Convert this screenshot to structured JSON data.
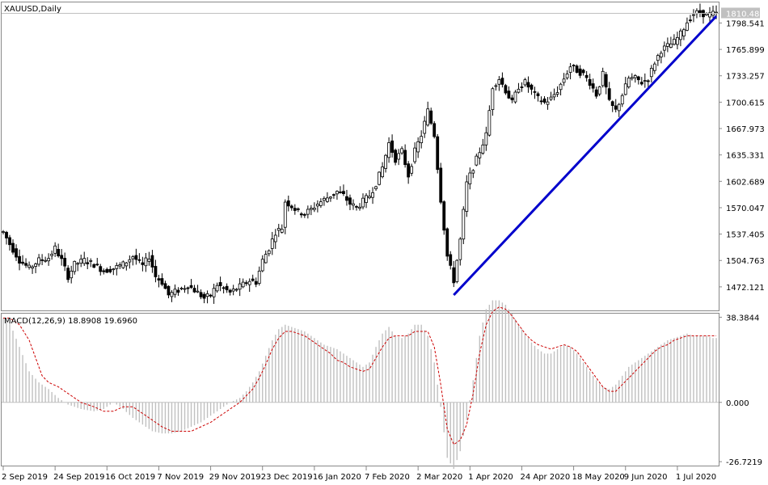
{
  "chart_data": {
    "type": "candlestick",
    "title": "XAUUSD,Daily",
    "price_panel": {
      "ylim": [
        1443.0,
        1824.0
      ],
      "y_ticks": [
        "1798.541",
        "1765.899",
        "1733.257",
        "1700.615",
        "1667.973",
        "1635.331",
        "1602.689",
        "1570.047",
        "1537.405",
        "1504.763",
        "1472.121"
      ],
      "current_price": "1810.480",
      "grid": false
    },
    "macd_panel": {
      "title": "MACD(12,26,9) 18.8908 19.6960",
      "ylim": [
        -28.5,
        40.0
      ],
      "y_ticks": [
        "38.3844",
        "0.000",
        "-26.7219"
      ],
      "zero_line": true
    },
    "x_tick_labels": [
      "2 Sep 2019",
      "24 Sep 2019",
      "16 Oct 2019",
      "7 Nov 2019",
      "29 Nov 2019",
      "23 Dec 2019",
      "16 Jan 2020",
      "7 Feb 2020",
      "2 Mar 2020",
      "1 Apr 2020",
      "24 Apr 2020",
      "18 May 2020",
      "9 Jun 2020",
      "1 Jul 2020"
    ],
    "x_tick_bar_index": [
      0,
      16,
      32,
      48,
      64,
      80,
      96,
      112,
      128,
      144,
      160,
      176,
      192,
      208
    ],
    "anchors": [
      [
        0,
        1540
      ],
      [
        2,
        1525
      ],
      [
        5,
        1505
      ],
      [
        8,
        1495
      ],
      [
        11,
        1505
      ],
      [
        14,
        1508
      ],
      [
        16,
        1520
      ],
      [
        18,
        1505
      ],
      [
        20,
        1485
      ],
      [
        22,
        1500
      ],
      [
        25,
        1505
      ],
      [
        28,
        1500
      ],
      [
        31,
        1492
      ],
      [
        34,
        1495
      ],
      [
        37,
        1500
      ],
      [
        40,
        1510
      ],
      [
        43,
        1498
      ],
      [
        45,
        1510
      ],
      [
        47,
        1485
      ],
      [
        49,
        1478
      ],
      [
        51,
        1462
      ],
      [
        54,
        1468
      ],
      [
        57,
        1474
      ],
      [
        60,
        1465
      ],
      [
        62,
        1458
      ],
      [
        64,
        1462
      ],
      [
        66,
        1475
      ],
      [
        68,
        1470
      ],
      [
        70,
        1465
      ],
      [
        72,
        1470
      ],
      [
        74,
        1475
      ],
      [
        76,
        1480
      ],
      [
        78,
        1478
      ],
      [
        80,
        1505
      ],
      [
        82,
        1520
      ],
      [
        84,
        1540
      ],
      [
        86,
        1545
      ],
      [
        87,
        1578
      ],
      [
        89,
        1572
      ],
      [
        91,
        1565
      ],
      [
        93,
        1563
      ],
      [
        95,
        1568
      ],
      [
        97,
        1575
      ],
      [
        99,
        1580
      ],
      [
        101,
        1585
      ],
      [
        103,
        1590
      ],
      [
        105,
        1585
      ],
      [
        107,
        1575
      ],
      [
        109,
        1570
      ],
      [
        111,
        1578
      ],
      [
        113,
        1585
      ],
      [
        115,
        1600
      ],
      [
        117,
        1620
      ],
      [
        119,
        1650
      ],
      [
        121,
        1630
      ],
      [
        123,
        1640
      ],
      [
        125,
        1610
      ],
      [
        127,
        1640
      ],
      [
        129,
        1660
      ],
      [
        131,
        1690
      ],
      [
        133,
        1660
      ],
      [
        135,
        1580
      ],
      [
        137,
        1510
      ],
      [
        139,
        1480
      ],
      [
        141,
        1530
      ],
      [
        143,
        1600
      ],
      [
        145,
        1620
      ],
      [
        147,
        1640
      ],
      [
        149,
        1660
      ],
      [
        151,
        1720
      ],
      [
        153,
        1730
      ],
      [
        155,
        1715
      ],
      [
        157,
        1700
      ],
      [
        159,
        1720
      ],
      [
        161,
        1725
      ],
      [
        163,
        1715
      ],
      [
        165,
        1705
      ],
      [
        167,
        1700
      ],
      [
        169,
        1705
      ],
      [
        171,
        1715
      ],
      [
        173,
        1730
      ],
      [
        175,
        1745
      ],
      [
        177,
        1740
      ],
      [
        179,
        1735
      ],
      [
        181,
        1725
      ],
      [
        183,
        1710
      ],
      [
        185,
        1735
      ],
      [
        187,
        1700
      ],
      [
        189,
        1690
      ],
      [
        191,
        1710
      ],
      [
        193,
        1730
      ],
      [
        195,
        1730
      ],
      [
        197,
        1725
      ],
      [
        199,
        1730
      ],
      [
        201,
        1750
      ],
      [
        203,
        1765
      ],
      [
        205,
        1770
      ],
      [
        207,
        1775
      ],
      [
        209,
        1785
      ],
      [
        211,
        1800
      ],
      [
        213,
        1810
      ],
      [
        215,
        1812
      ],
      [
        217,
        1808
      ],
      [
        219,
        1810
      ],
      [
        220,
        1810
      ]
    ],
    "macd_anchors": [
      [
        0,
        38
      ],
      [
        2,
        36
      ],
      [
        5,
        25
      ],
      [
        8,
        14
      ],
      [
        11,
        9
      ],
      [
        14,
        6
      ],
      [
        17,
        2
      ],
      [
        20,
        -1
      ],
      [
        24,
        -3
      ],
      [
        28,
        -4
      ],
      [
        31,
        -3
      ],
      [
        34,
        0
      ],
      [
        37,
        -3
      ],
      [
        40,
        -7
      ],
      [
        43,
        -10
      ],
      [
        46,
        -13
      ],
      [
        49,
        -14
      ],
      [
        52,
        -14
      ],
      [
        55,
        -13
      ],
      [
        58,
        -11
      ],
      [
        61,
        -9
      ],
      [
        64,
        -6
      ],
      [
        67,
        -3
      ],
      [
        70,
        0
      ],
      [
        73,
        2
      ],
      [
        75,
        5
      ],
      [
        77,
        9
      ],
      [
        79,
        14
      ],
      [
        81,
        21
      ],
      [
        83,
        28
      ],
      [
        85,
        33
      ],
      [
        87,
        35
      ],
      [
        89,
        34
      ],
      [
        91,
        33
      ],
      [
        93,
        32
      ],
      [
        95,
        30
      ],
      [
        97,
        28
      ],
      [
        99,
        26
      ],
      [
        101,
        25
      ],
      [
        103,
        24
      ],
      [
        105,
        22
      ],
      [
        107,
        20
      ],
      [
        109,
        18
      ],
      [
        111,
        16
      ],
      [
        113,
        18
      ],
      [
        115,
        25
      ],
      [
        117,
        31
      ],
      [
        119,
        34
      ],
      [
        121,
        30
      ],
      [
        123,
        29
      ],
      [
        125,
        31
      ],
      [
        127,
        35
      ],
      [
        129,
        35
      ],
      [
        131,
        30
      ],
      [
        133,
        18
      ],
      [
        135,
        -2
      ],
      [
        137,
        -25
      ],
      [
        139,
        -30
      ],
      [
        141,
        -22
      ],
      [
        143,
        -8
      ],
      [
        145,
        10
      ],
      [
        147,
        30
      ],
      [
        149,
        42
      ],
      [
        151,
        46
      ],
      [
        153,
        46
      ],
      [
        155,
        44
      ],
      [
        157,
        40
      ],
      [
        159,
        35
      ],
      [
        161,
        31
      ],
      [
        163,
        27
      ],
      [
        165,
        24
      ],
      [
        167,
        22
      ],
      [
        169,
        22
      ],
      [
        171,
        24
      ],
      [
        173,
        26
      ],
      [
        175,
        25
      ],
      [
        177,
        22
      ],
      [
        179,
        18
      ],
      [
        181,
        14
      ],
      [
        183,
        10
      ],
      [
        185,
        7
      ],
      [
        187,
        6
      ],
      [
        189,
        8
      ],
      [
        191,
        12
      ],
      [
        193,
        16
      ],
      [
        195,
        18
      ],
      [
        197,
        20
      ],
      [
        199,
        22
      ],
      [
        201,
        24
      ],
      [
        203,
        26
      ],
      [
        205,
        28
      ],
      [
        207,
        29
      ],
      [
        209,
        30
      ],
      [
        211,
        31
      ],
      [
        213,
        30
      ],
      [
        215,
        30
      ],
      [
        217,
        30
      ],
      [
        219,
        29
      ],
      [
        220,
        29
      ]
    ],
    "signal_anchors": [
      [
        0,
        38
      ],
      [
        2,
        38
      ],
      [
        5,
        35
      ],
      [
        8,
        28
      ],
      [
        10,
        20
      ],
      [
        12,
        12
      ],
      [
        14,
        9
      ],
      [
        17,
        7
      ],
      [
        20,
        4
      ],
      [
        24,
        0
      ],
      [
        28,
        -2
      ],
      [
        31,
        -4
      ],
      [
        34,
        -4
      ],
      [
        37,
        -2
      ],
      [
        40,
        -2
      ],
      [
        43,
        -5
      ],
      [
        46,
        -8
      ],
      [
        49,
        -11
      ],
      [
        52,
        -13
      ],
      [
        55,
        -13
      ],
      [
        58,
        -13
      ],
      [
        61,
        -11
      ],
      [
        64,
        -9
      ],
      [
        67,
        -6
      ],
      [
        70,
        -3
      ],
      [
        73,
        0
      ],
      [
        75,
        3
      ],
      [
        77,
        6
      ],
      [
        79,
        11
      ],
      [
        81,
        17
      ],
      [
        83,
        24
      ],
      [
        85,
        29
      ],
      [
        87,
        32
      ],
      [
        89,
        32
      ],
      [
        91,
        31
      ],
      [
        93,
        30
      ],
      [
        95,
        28
      ],
      [
        97,
        26
      ],
      [
        99,
        24
      ],
      [
        101,
        22
      ],
      [
        103,
        19
      ],
      [
        105,
        18
      ],
      [
        107,
        16
      ],
      [
        109,
        15
      ],
      [
        111,
        14
      ],
      [
        113,
        15
      ],
      [
        115,
        20
      ],
      [
        117,
        25
      ],
      [
        119,
        29
      ],
      [
        121,
        30
      ],
      [
        123,
        30
      ],
      [
        125,
        30
      ],
      [
        127,
        32
      ],
      [
        129,
        32
      ],
      [
        131,
        32
      ],
      [
        133,
        25
      ],
      [
        135,
        8
      ],
      [
        137,
        -12
      ],
      [
        139,
        -19
      ],
      [
        141,
        -17
      ],
      [
        143,
        -10
      ],
      [
        145,
        4
      ],
      [
        147,
        22
      ],
      [
        149,
        35
      ],
      [
        151,
        41
      ],
      [
        153,
        43
      ],
      [
        155,
        42
      ],
      [
        157,
        39
      ],
      [
        159,
        35
      ],
      [
        161,
        31
      ],
      [
        163,
        28
      ],
      [
        165,
        26
      ],
      [
        167,
        25
      ],
      [
        169,
        24
      ],
      [
        171,
        25
      ],
      [
        173,
        26
      ],
      [
        175,
        25
      ],
      [
        177,
        23
      ],
      [
        179,
        19
      ],
      [
        181,
        15
      ],
      [
        183,
        11
      ],
      [
        185,
        7
      ],
      [
        187,
        5
      ],
      [
        189,
        5
      ],
      [
        191,
        8
      ],
      [
        193,
        11
      ],
      [
        195,
        14
      ],
      [
        197,
        17
      ],
      [
        199,
        20
      ],
      [
        201,
        23
      ],
      [
        203,
        25
      ],
      [
        205,
        26
      ],
      [
        207,
        28
      ],
      [
        209,
        29
      ],
      [
        211,
        30
      ],
      [
        213,
        30
      ],
      [
        215,
        30
      ],
      [
        217,
        30
      ],
      [
        219,
        30
      ],
      [
        220,
        30
      ]
    ],
    "trendline": {
      "from": [
        139,
        1462
      ],
      "to": [
        220,
        1807
      ],
      "color": "#0000cc"
    },
    "colors": {
      "candle": "#000000",
      "macd_hist": "#c0c0c0",
      "signal": "#cc0000",
      "border": "#888888",
      "price_marker_bg": "#c0c0c0"
    }
  }
}
